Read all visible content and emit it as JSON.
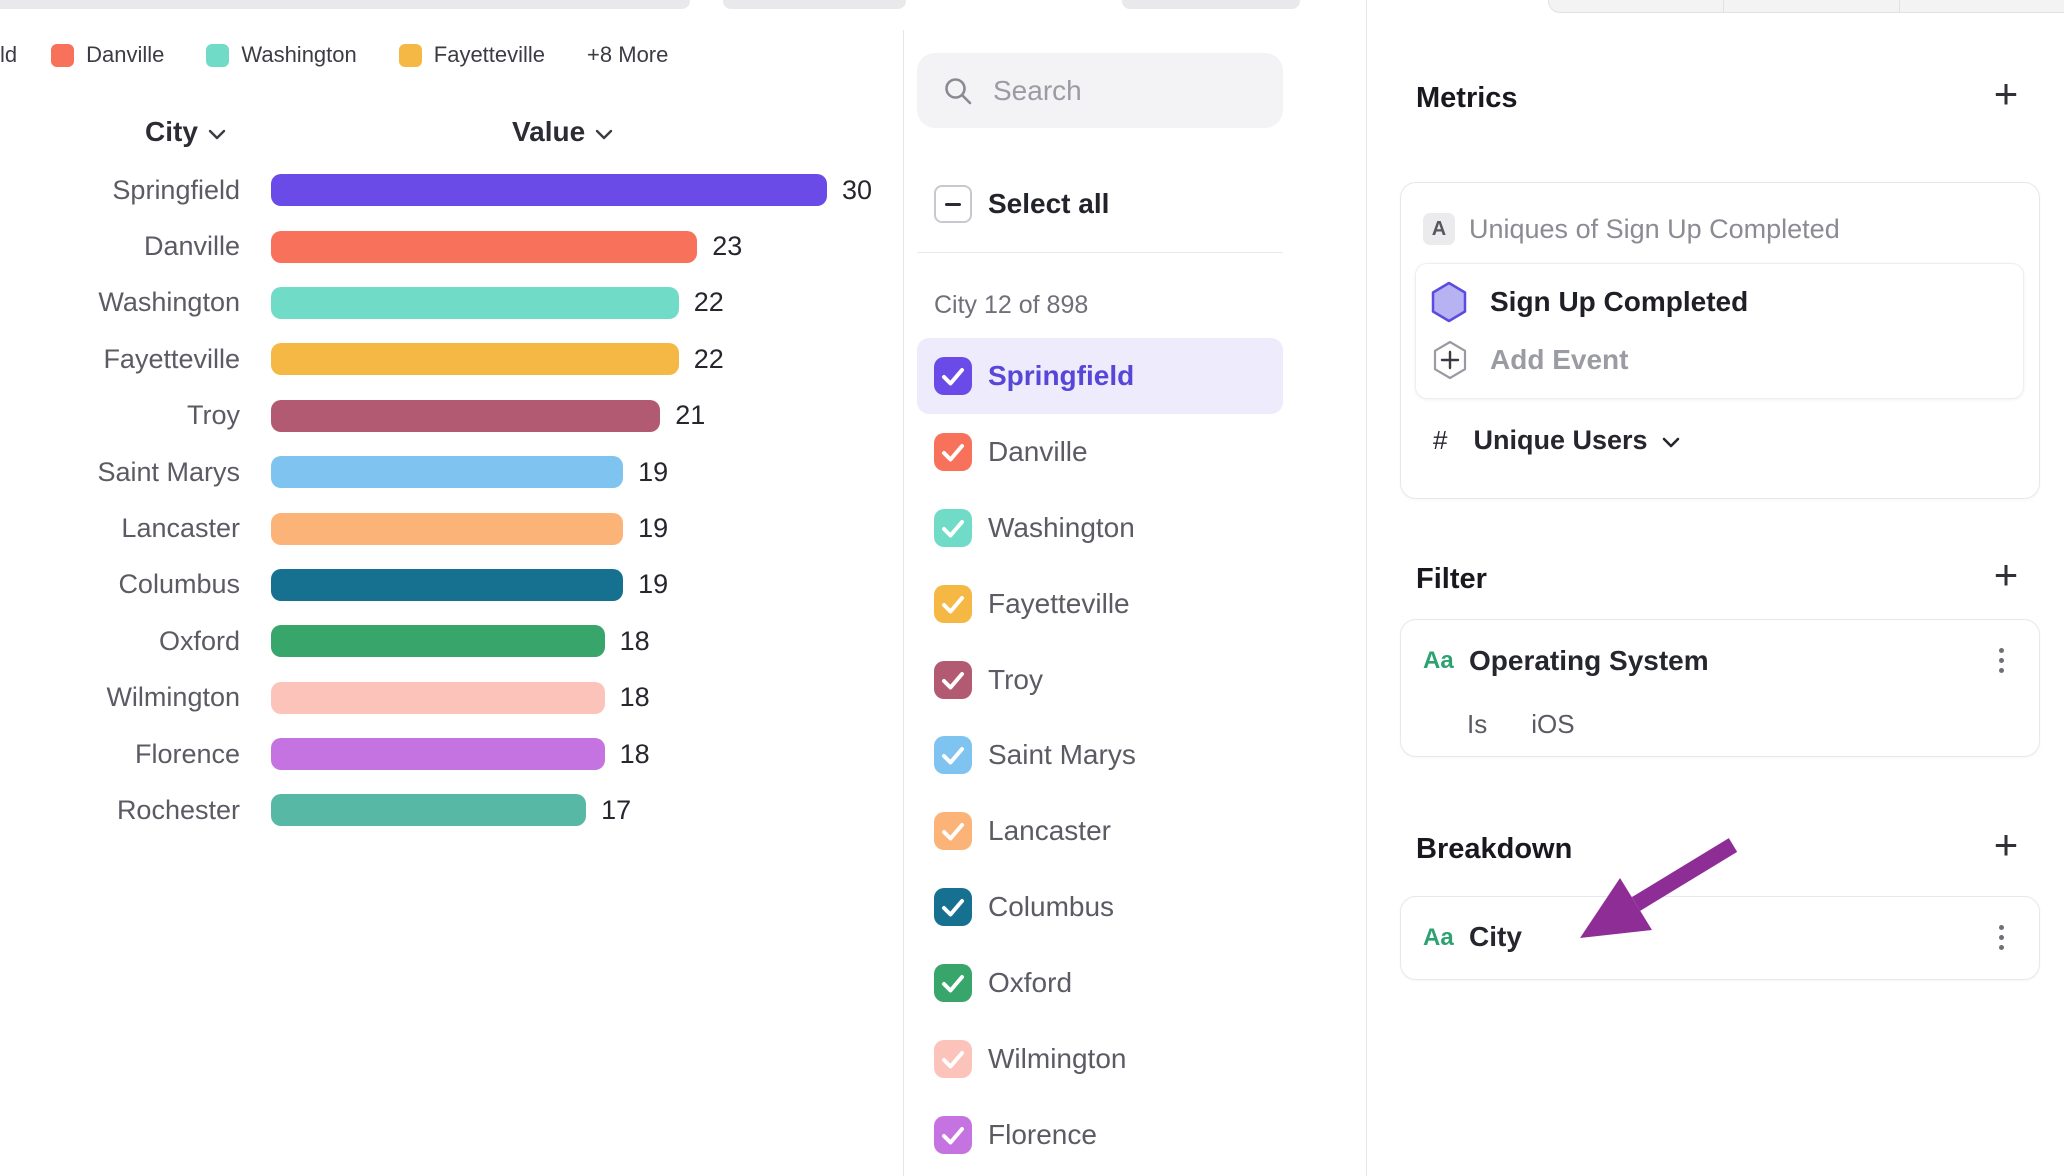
{
  "legend": {
    "truncated_label": "ld",
    "items": [
      {
        "label": "Danville",
        "color": "#f8715a"
      },
      {
        "label": "Washington",
        "color": "#70dcc8"
      },
      {
        "label": "Fayetteville",
        "color": "#f5b844"
      }
    ],
    "more_label": "+8 More"
  },
  "chart_data": {
    "type": "bar",
    "orientation": "horizontal",
    "title": "",
    "columns": {
      "city": "City",
      "value": "Value"
    },
    "categories": [
      "Springfield",
      "Danville",
      "Washington",
      "Fayetteville",
      "Troy",
      "Saint Marys",
      "Lancaster",
      "Columbus",
      "Oxford",
      "Wilmington",
      "Florence",
      "Rochester"
    ],
    "values": [
      30,
      23,
      22,
      22,
      21,
      19,
      19,
      19,
      18,
      18,
      18,
      17
    ],
    "colors": [
      "#6a4be8",
      "#f8715a",
      "#70dcc8",
      "#f5b844",
      "#b25a72",
      "#7fc4f1",
      "#fcb377",
      "#16708f",
      "#38a56b",
      "#fbc3ba",
      "#c573e0",
      "#57b8a5"
    ],
    "xlim": [
      0,
      30
    ],
    "value_labels_shown": true,
    "grid": false,
    "legend_position": "top"
  },
  "city_panel": {
    "search_placeholder": "Search",
    "select_all_label": "Select all",
    "select_all_state": "indeterminate",
    "count_label": "City 12 of 898",
    "items": [
      {
        "label": "Springfield",
        "color": "#6a4be8",
        "checked": true,
        "selected": true
      },
      {
        "label": "Danville",
        "color": "#f8715a",
        "checked": true,
        "selected": false
      },
      {
        "label": "Washington",
        "color": "#70dcc8",
        "checked": true,
        "selected": false
      },
      {
        "label": "Fayetteville",
        "color": "#f5b844",
        "checked": true,
        "selected": false
      },
      {
        "label": "Troy",
        "color": "#b25a72",
        "checked": true,
        "selected": false
      },
      {
        "label": "Saint Marys",
        "color": "#7fc4f1",
        "checked": true,
        "selected": false
      },
      {
        "label": "Lancaster",
        "color": "#fcb377",
        "checked": true,
        "selected": false
      },
      {
        "label": "Columbus",
        "color": "#16708f",
        "checked": true,
        "selected": false
      },
      {
        "label": "Oxford",
        "color": "#38a56b",
        "checked": true,
        "selected": false
      },
      {
        "label": "Wilmington",
        "color": "#fbc3ba",
        "checked": true,
        "selected": false
      },
      {
        "label": "Florence",
        "color": "#c573e0",
        "checked": true,
        "selected": false
      }
    ]
  },
  "inspector": {
    "metrics": {
      "title": "Metrics",
      "formula_badge": "A",
      "formula_text": "Uniques of Sign Up Completed",
      "event_name": "Sign Up Completed",
      "add_event_label": "Add Event",
      "measure_prefix": "#",
      "measure_label": "Unique Users"
    },
    "filter": {
      "title": "Filter",
      "property_type": "Aa",
      "property_name": "Operating System",
      "operator": "Is",
      "value": "iOS"
    },
    "breakdown": {
      "title": "Breakdown",
      "property_type": "Aa",
      "property_name": "City"
    }
  },
  "annotation": {
    "arrow_color": "#8e2d96"
  },
  "icons": {
    "search": "magnifier",
    "select_all": "indeterminate-minus",
    "event": "hexagon",
    "add_event": "hexagon-plus",
    "menu": "kebab-dots",
    "add": "plus",
    "sort": "chevron-down"
  }
}
